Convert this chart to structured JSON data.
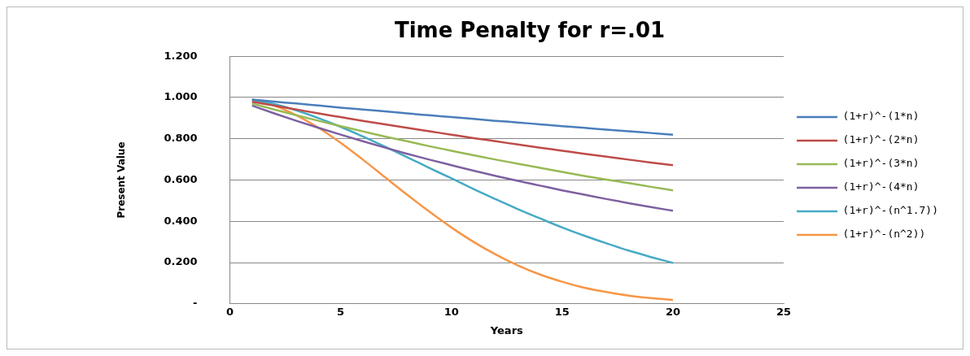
{
  "chart_data": {
    "type": "line",
    "title": "Time Penalty for r=.01",
    "xlabel": "Years",
    "ylabel": "Present Value",
    "x": [
      1,
      2,
      3,
      4,
      5,
      6,
      7,
      8,
      9,
      10,
      11,
      12,
      13,
      14,
      15,
      16,
      17,
      18,
      19,
      20
    ],
    "series": [
      {
        "name": "(1+r)^-(1*n)",
        "color": "#4a7ebb",
        "values": [
          0.99,
          0.98,
          0.971,
          0.961,
          0.951,
          0.942,
          0.933,
          0.923,
          0.914,
          0.905,
          0.896,
          0.887,
          0.879,
          0.87,
          0.861,
          0.853,
          0.844,
          0.836,
          0.828,
          0.82
        ]
      },
      {
        "name": "(1+r)^-(2*n)",
        "color": "#be4b48",
        "values": [
          0.98,
          0.961,
          0.942,
          0.923,
          0.905,
          0.887,
          0.87,
          0.853,
          0.836,
          0.82,
          0.803,
          0.788,
          0.772,
          0.757,
          0.742,
          0.727,
          0.713,
          0.699,
          0.685,
          0.672
        ]
      },
      {
        "name": "(1+r)^-(3*n)",
        "color": "#98b954",
        "values": [
          0.971,
          0.942,
          0.914,
          0.887,
          0.861,
          0.836,
          0.811,
          0.788,
          0.764,
          0.742,
          0.72,
          0.699,
          0.679,
          0.659,
          0.639,
          0.62,
          0.602,
          0.585,
          0.567,
          0.55
        ]
      },
      {
        "name": "(1+r)^-(4*n)",
        "color": "#7d60a0",
        "values": [
          0.961,
          0.923,
          0.887,
          0.853,
          0.82,
          0.788,
          0.757,
          0.727,
          0.699,
          0.672,
          0.645,
          0.62,
          0.596,
          0.573,
          0.55,
          0.529,
          0.508,
          0.488,
          0.469,
          0.451
        ]
      },
      {
        "name": "(1+r)^-(n^1.7))",
        "color": "#46aac5",
        "values": [
          0.99,
          0.968,
          0.938,
          0.9,
          0.858,
          0.811,
          0.762,
          0.711,
          0.659,
          0.608,
          0.556,
          0.507,
          0.459,
          0.414,
          0.37,
          0.33,
          0.293,
          0.258,
          0.227,
          0.198
        ]
      },
      {
        "name": "(1+r)^-(n^2))",
        "color": "#f79646",
        "values": [
          0.99,
          0.961,
          0.914,
          0.853,
          0.78,
          0.699,
          0.614,
          0.529,
          0.447,
          0.37,
          0.3,
          0.239,
          0.186,
          0.142,
          0.107,
          0.078,
          0.057,
          0.04,
          0.028,
          0.019
        ]
      }
    ],
    "xlim": [
      0,
      25
    ],
    "xticks": [
      0,
      5,
      10,
      15,
      20,
      25
    ],
    "ylim": [
      0,
      1.2
    ],
    "yticks": [
      {
        "value": 0,
        "label": "-"
      },
      {
        "value": 0.2,
        "label": "0.200"
      },
      {
        "value": 0.4,
        "label": "0.400"
      },
      {
        "value": 0.6,
        "label": "0.600"
      },
      {
        "value": 0.8,
        "label": "0.800"
      },
      {
        "value": 1,
        "label": "1.000"
      },
      {
        "value": 1.2,
        "label": "1.200"
      }
    ],
    "grid": "y",
    "legend": "right",
    "marker": "none",
    "line_style": "solid"
  }
}
